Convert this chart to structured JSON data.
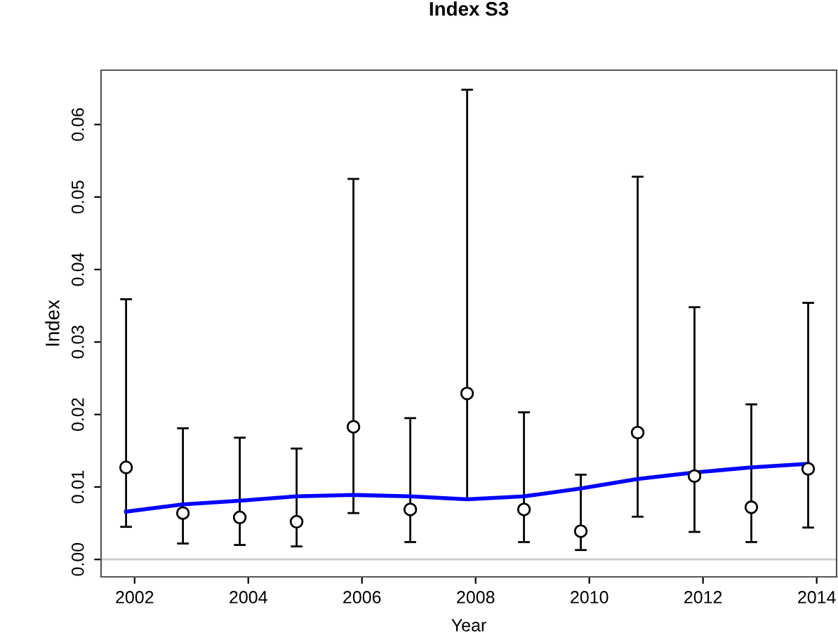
{
  "chart_data": {
    "type": "scatter",
    "title": "Index S3",
    "xlabel": "Year",
    "ylabel": "Index",
    "xlim": [
      2001.41,
      2014.35
    ],
    "xticks": [
      2002,
      2004,
      2006,
      2008,
      2010,
      2012,
      2014
    ],
    "ylim": [
      -0.0024,
      0.0675
    ],
    "yticks": [
      {
        "value": 0,
        "label": "0.00"
      },
      {
        "value": 0.01,
        "label": "0.01"
      },
      {
        "value": 0.02,
        "label": "0.02"
      },
      {
        "value": 0.03,
        "label": "0.03"
      },
      {
        "value": 0.04,
        "label": "0.04"
      },
      {
        "value": 0.05,
        "label": "0.05"
      },
      {
        "value": 0.06,
        "label": "0.06"
      }
    ],
    "grid": false,
    "legend": false,
    "ref_lines": [
      {
        "axis": "y",
        "value": 0,
        "color": "#cccccc"
      }
    ],
    "series": [
      {
        "type": "line",
        "color": "#0000ff",
        "marker": "none",
        "x": [
          2001.85,
          2002.85,
          2003.85,
          2004.85,
          2005.85,
          2006.85,
          2007.85,
          2008.85,
          2009.85,
          2010.85,
          2011.85,
          2012.85,
          2013.85
        ],
        "values": [
          0.0066,
          0.0076,
          0.0081,
          0.0087,
          0.0089,
          0.0087,
          0.0083,
          0.0087,
          0.0098,
          0.0111,
          0.012,
          0.0127,
          0.0132
        ]
      },
      {
        "color": "#000000",
        "marker": "circle",
        "x": [
          2001.85,
          2002.85,
          2003.85,
          2004.85,
          2005.85,
          2006.85,
          2007.85,
          2008.85,
          2009.85,
          2010.85,
          2011.85,
          2012.85,
          2013.85
        ],
        "values": [
          0.0127,
          0.0064,
          0.0058,
          0.0052,
          0.0183,
          0.0069,
          0.0229,
          0.0069,
          0.0039,
          0.0175,
          0.0115,
          0.0072,
          0.0125
        ],
        "errors": [
          [
            0.0045,
            0.0359
          ],
          [
            0.0022,
            0.0181
          ],
          [
            0.002,
            0.0168
          ],
          [
            0.0018,
            0.0153
          ],
          [
            0.0064,
            0.0525
          ],
          [
            0.0024,
            0.0195
          ],
          [
            0.0083,
            0.0648
          ],
          [
            0.0024,
            0.0203
          ],
          [
            0.0013,
            0.0117
          ],
          [
            0.0059,
            0.0528
          ],
          [
            0.0038,
            0.0348
          ],
          [
            0.0024,
            0.0214
          ],
          [
            0.0044,
            0.0354
          ]
        ]
      }
    ]
  }
}
